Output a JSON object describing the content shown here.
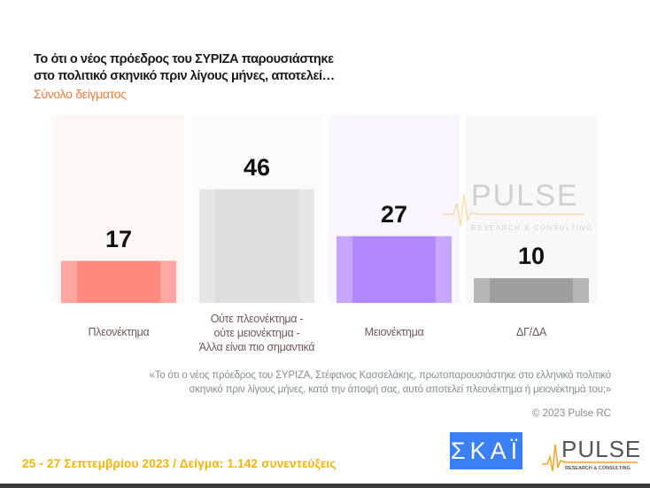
{
  "header": {
    "title_line1": "Το ότι ο νέος πρόεδρος του ΣΥΡΙΖΑ παρουσιάστηκε",
    "title_line2": "στο πολιτικό σκηνικό πριν λίγους μήνες, αποτελεί…",
    "subtitle": "Σύνολο δείγματος"
  },
  "chart_data": {
    "type": "bar",
    "categories": [
      "Πλεονέκτημα",
      "Ούτε πλεονέκτημα - ούτε μειονέκτημα - Άλλα είναι πιο σημαντικά",
      "Μειονέκτημα",
      "ΔΓ/ΔΑ"
    ],
    "category_lines": [
      [
        "Πλεονέκτημα"
      ],
      [
        "Ούτε πλεονέκτημα -",
        "ούτε μειονέκτημα -",
        "Άλλα είναι πιο σημαντικά"
      ],
      [
        "Μειονέκτημα"
      ],
      [
        "ΔΓ/ΔΑ"
      ]
    ],
    "values": [
      17,
      46,
      27,
      10
    ],
    "colors": [
      "#ff8a80",
      "#dedede",
      "#b388ff",
      "#9e9e9e"
    ],
    "bg_colors": [
      "#fff6f6",
      "#fbfbfb",
      "#f9f6ff",
      "#f8f8f8"
    ],
    "ylim": [
      0,
      76
    ],
    "grid": false
  },
  "question": {
    "line1": "«Το ότι ο νέος πρόεδρος του ΣΥΡΙΖΑ, Στέφανος Κασσελάκης, πρωτοπαρουσιάστηκε στο ελληνικό πολιτικό",
    "line2": "σκηνικό πριν λίγους μήνες, κατά την άποψή σας, αυτό αποτελεί πλεονέκτημα ή μειονέκτημά του;»"
  },
  "copyright": "© 2023 Pulse RC",
  "footer": "25 - 27 Σεπτεμβρίου  2023  /  Δείγμα:  1.142 συνεντεύξεις",
  "logos": {
    "skai": "ΣΚΑΪ",
    "pulse": "PULSE",
    "pulse_tagline": "RESEARCH & CONSULTING"
  },
  "colors": {
    "accent_orange": "#f07b3f",
    "footer_yellow": "#f5b400",
    "skai_blue": "#3b7ff5"
  }
}
